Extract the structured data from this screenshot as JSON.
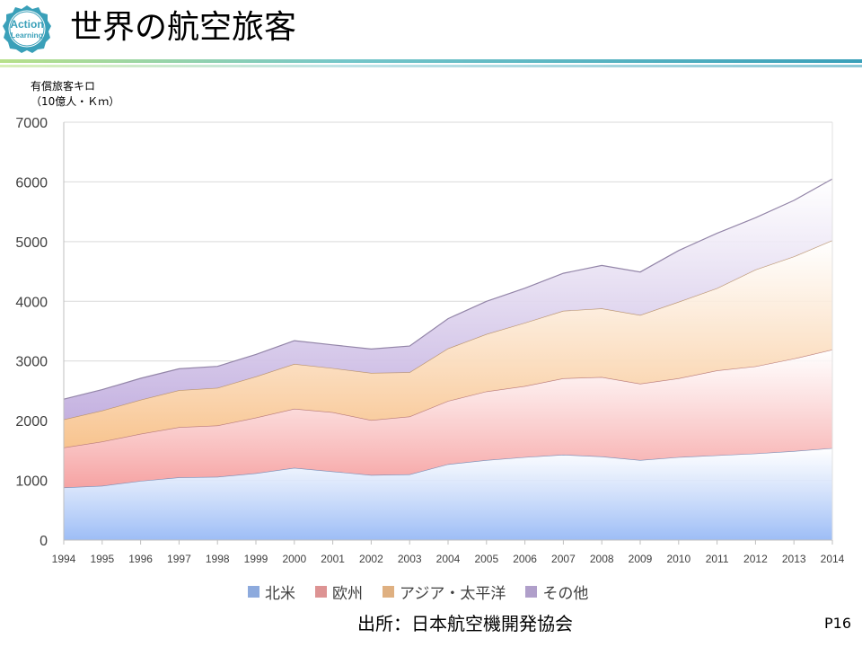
{
  "logo": {
    "line1": "Action",
    "line2": "Learning"
  },
  "title": "世界の航空旅客",
  "source": "出所：日本航空機開発協会",
  "page": "P16",
  "colors": {
    "north_america": "#9dbdf6",
    "europe": "#f6a3a3",
    "asia_pacific": "#f8c48f",
    "other": "#c4b1e0",
    "accent_green": "#8fd14f",
    "accent_teal": "#3aa0b9"
  },
  "chart_data": {
    "type": "area",
    "stacked": true,
    "ylabel": [
      "有償旅客キロ",
      "（10億人・Ｋｍ）"
    ],
    "ylim": [
      0,
      7000
    ],
    "yticks": [
      "0",
      "1000",
      "2000",
      "3000",
      "4000",
      "5000",
      "6000",
      "7000"
    ],
    "grid": true,
    "legend_position": "bottom",
    "categories": [
      "1994",
      "1995",
      "1996",
      "1997",
      "1998",
      "1999",
      "2000",
      "2001",
      "2002",
      "2003",
      "2004",
      "2005",
      "2006",
      "2007",
      "2008",
      "2009",
      "2010",
      "2011",
      "2012",
      "2013",
      "2014"
    ],
    "series": [
      {
        "name": "北米",
        "color_key": "north_america",
        "values": [
          880,
          910,
          990,
          1050,
          1060,
          1120,
          1210,
          1150,
          1090,
          1100,
          1270,
          1340,
          1390,
          1430,
          1400,
          1340,
          1390,
          1420,
          1450,
          1490,
          1540
        ]
      },
      {
        "name": "欧州",
        "color_key": "europe",
        "values": [
          670,
          740,
          790,
          840,
          860,
          930,
          990,
          990,
          920,
          970,
          1060,
          1150,
          1190,
          1280,
          1330,
          1280,
          1320,
          1420,
          1460,
          1550,
          1650
        ]
      },
      {
        "name": "アジア・太平洋",
        "color_key": "asia_pacific",
        "values": [
          470,
          520,
          570,
          620,
          630,
          690,
          750,
          740,
          790,
          740,
          880,
          960,
          1060,
          1130,
          1150,
          1150,
          1280,
          1380,
          1620,
          1710,
          1830
        ]
      },
      {
        "name": "その他",
        "color_key": "other",
        "values": [
          340,
          350,
          360,
          360,
          360,
          370,
          390,
          390,
          400,
          440,
          500,
          550,
          580,
          630,
          720,
          720,
          860,
          920,
          870,
          940,
          1030
        ]
      }
    ]
  }
}
